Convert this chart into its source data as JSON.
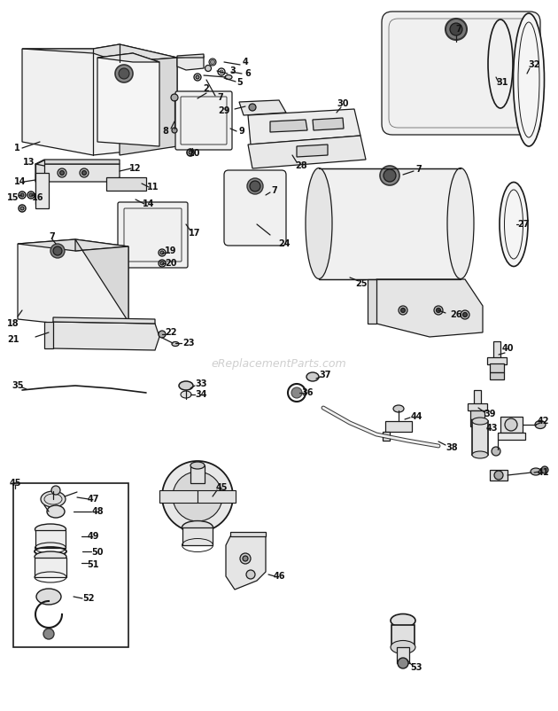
{
  "bg_color": "#ffffff",
  "line_color": "#1a1a1a",
  "watermark": "eReplacementParts.com",
  "fig_w": 6.2,
  "fig_h": 7.92,
  "dpi": 100
}
